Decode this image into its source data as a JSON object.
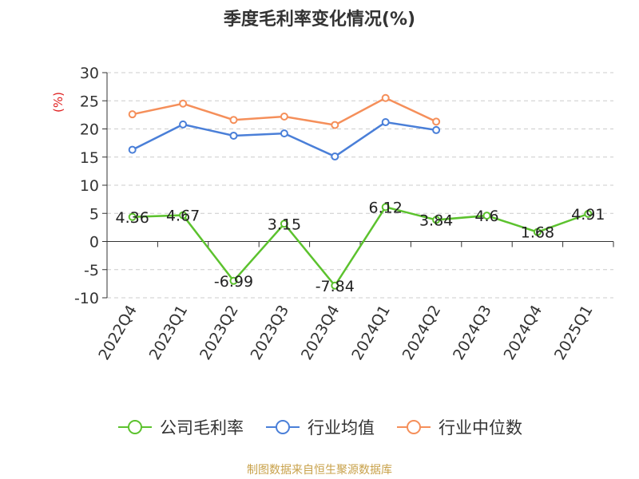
{
  "chart_data": {
    "type": "line",
    "title": "季度毛利率变化情况(%)",
    "ylabel": "(%)",
    "xlabel": "",
    "categories": [
      "2022Q4",
      "2023Q1",
      "2023Q2",
      "2023Q3",
      "2023Q4",
      "2024Q1",
      "2024Q2",
      "2024Q3",
      "2024Q4",
      "2025Q1"
    ],
    "ylim": [
      -10,
      30
    ],
    "yticks": [
      "30",
      "25",
      "20",
      "15",
      "10",
      "5",
      "0",
      "-5",
      "-10"
    ],
    "grid": true,
    "legend_position": "bottom",
    "series": [
      {
        "name": "公司毛利率",
        "color": "#5cc22e",
        "values": [
          4.36,
          4.67,
          -6.99,
          3.15,
          -7.84,
          6.12,
          3.84,
          4.6,
          1.68,
          4.91
        ],
        "labels": [
          "4.36",
          "4.67",
          "-6.99",
          "3.15",
          "-7.84",
          "6.12",
          "3.84",
          "4.6",
          "1.68",
          "4.91"
        ]
      },
      {
        "name": "行业均值",
        "color": "#4a7fd8",
        "values": [
          16.3,
          20.8,
          18.8,
          19.2,
          15.1,
          21.2,
          19.8,
          null,
          null,
          null
        ]
      },
      {
        "name": "行业中位数",
        "color": "#f58f5a",
        "values": [
          22.6,
          24.5,
          21.6,
          22.2,
          20.7,
          25.5,
          21.3,
          null,
          null,
          null
        ]
      }
    ],
    "source": "制图数据来自恒生聚源数据库"
  }
}
